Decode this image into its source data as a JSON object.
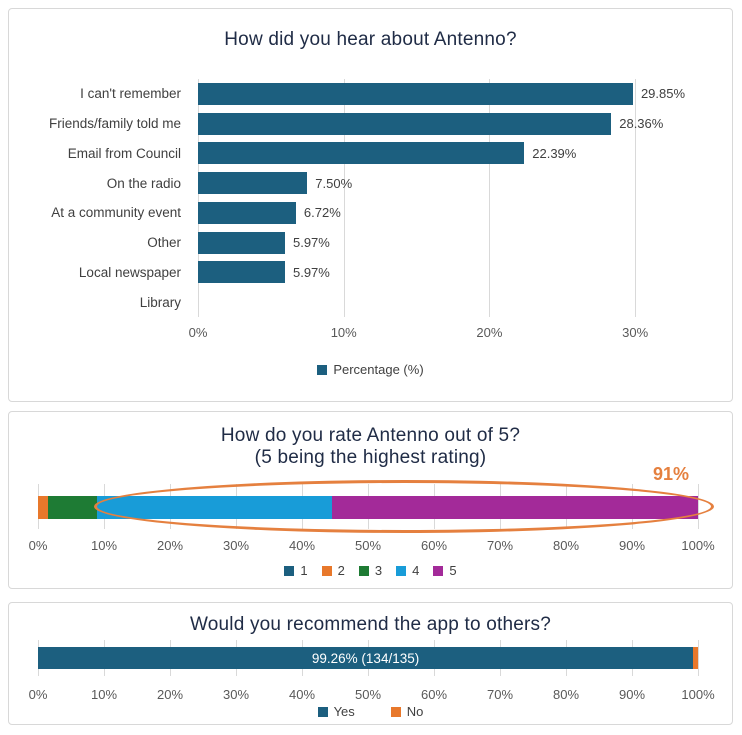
{
  "page": {
    "background": "#FFFFFF",
    "card_border": "#D8D8D8",
    "gridline_color": "#D9D9D9",
    "title_color": "#202C46",
    "axis_text_color": "#595959",
    "label_text_color": "#404040"
  },
  "chart_data": [
    {
      "type": "bar",
      "title": "How did you hear about Antenno?",
      "orientation": "horizontal",
      "bar_color": "#1C5F7F",
      "categories": [
        "I can't remember",
        "Friends/family told me",
        "Email from Council",
        "On the radio",
        "At a community event",
        "Other",
        "Local newspaper",
        "Library"
      ],
      "values": [
        29.85,
        28.36,
        22.39,
        7.5,
        6.72,
        5.97,
        5.97,
        0
      ],
      "value_labels": [
        "29.85%",
        "28.36%",
        "22.39%",
        "7.50%",
        "6.72%",
        "5.97%",
        "5.97%",
        ""
      ],
      "xlim": [
        0,
        35
      ],
      "grid": true,
      "ticks": [
        {
          "value": 0,
          "label": "0%"
        },
        {
          "value": 10,
          "label": "10%"
        },
        {
          "value": 20,
          "label": "20%"
        },
        {
          "value": 30,
          "label": "30%"
        }
      ],
      "legend_position": "bottom",
      "legend": [
        {
          "label": "Percentage (%)",
          "color": "#1C5F7F"
        }
      ]
    },
    {
      "type": "stacked-bar",
      "title": "How do you rate Antenno out of 5?",
      "subtitle": "(5 being the highest rating)",
      "orientation": "horizontal",
      "xlim": [
        0,
        100
      ],
      "grid": true,
      "tick_labels": [
        "0%",
        "10%",
        "20%",
        "30%",
        "40%",
        "50%",
        "60%",
        "70%",
        "80%",
        "90%",
        "100%"
      ],
      "series": [
        {
          "name": "1",
          "value": 0,
          "color": "#1C5F7F"
        },
        {
          "name": "2",
          "value": 1.5,
          "color": "#E8782B"
        },
        {
          "name": "3",
          "value": 7.4,
          "color": "#1E7B34"
        },
        {
          "name": "4",
          "value": 35.6,
          "color": "#189CD8"
        },
        {
          "name": "5",
          "value": 55.5,
          "color": "#A32A99"
        }
      ],
      "annotation": {
        "label": "91%",
        "color": "#E5803F",
        "refers_to": "ratings 4 and 5 combined",
        "shape": "ellipse"
      },
      "legend_position": "bottom"
    },
    {
      "type": "stacked-bar",
      "title": "Would you recommend the app to others?",
      "orientation": "horizontal",
      "xlim": [
        0,
        100
      ],
      "grid": true,
      "tick_labels": [
        "0%",
        "10%",
        "20%",
        "30%",
        "40%",
        "50%",
        "60%",
        "70%",
        "80%",
        "90%",
        "100%"
      ],
      "series": [
        {
          "name": "Yes",
          "value": 99.26,
          "bar_label": "99.26% (134/135)",
          "color": "#1C5F7F"
        },
        {
          "name": "No",
          "value": 0.74,
          "bar_label": "",
          "color": "#E8782B"
        }
      ],
      "legend_position": "bottom"
    }
  ]
}
